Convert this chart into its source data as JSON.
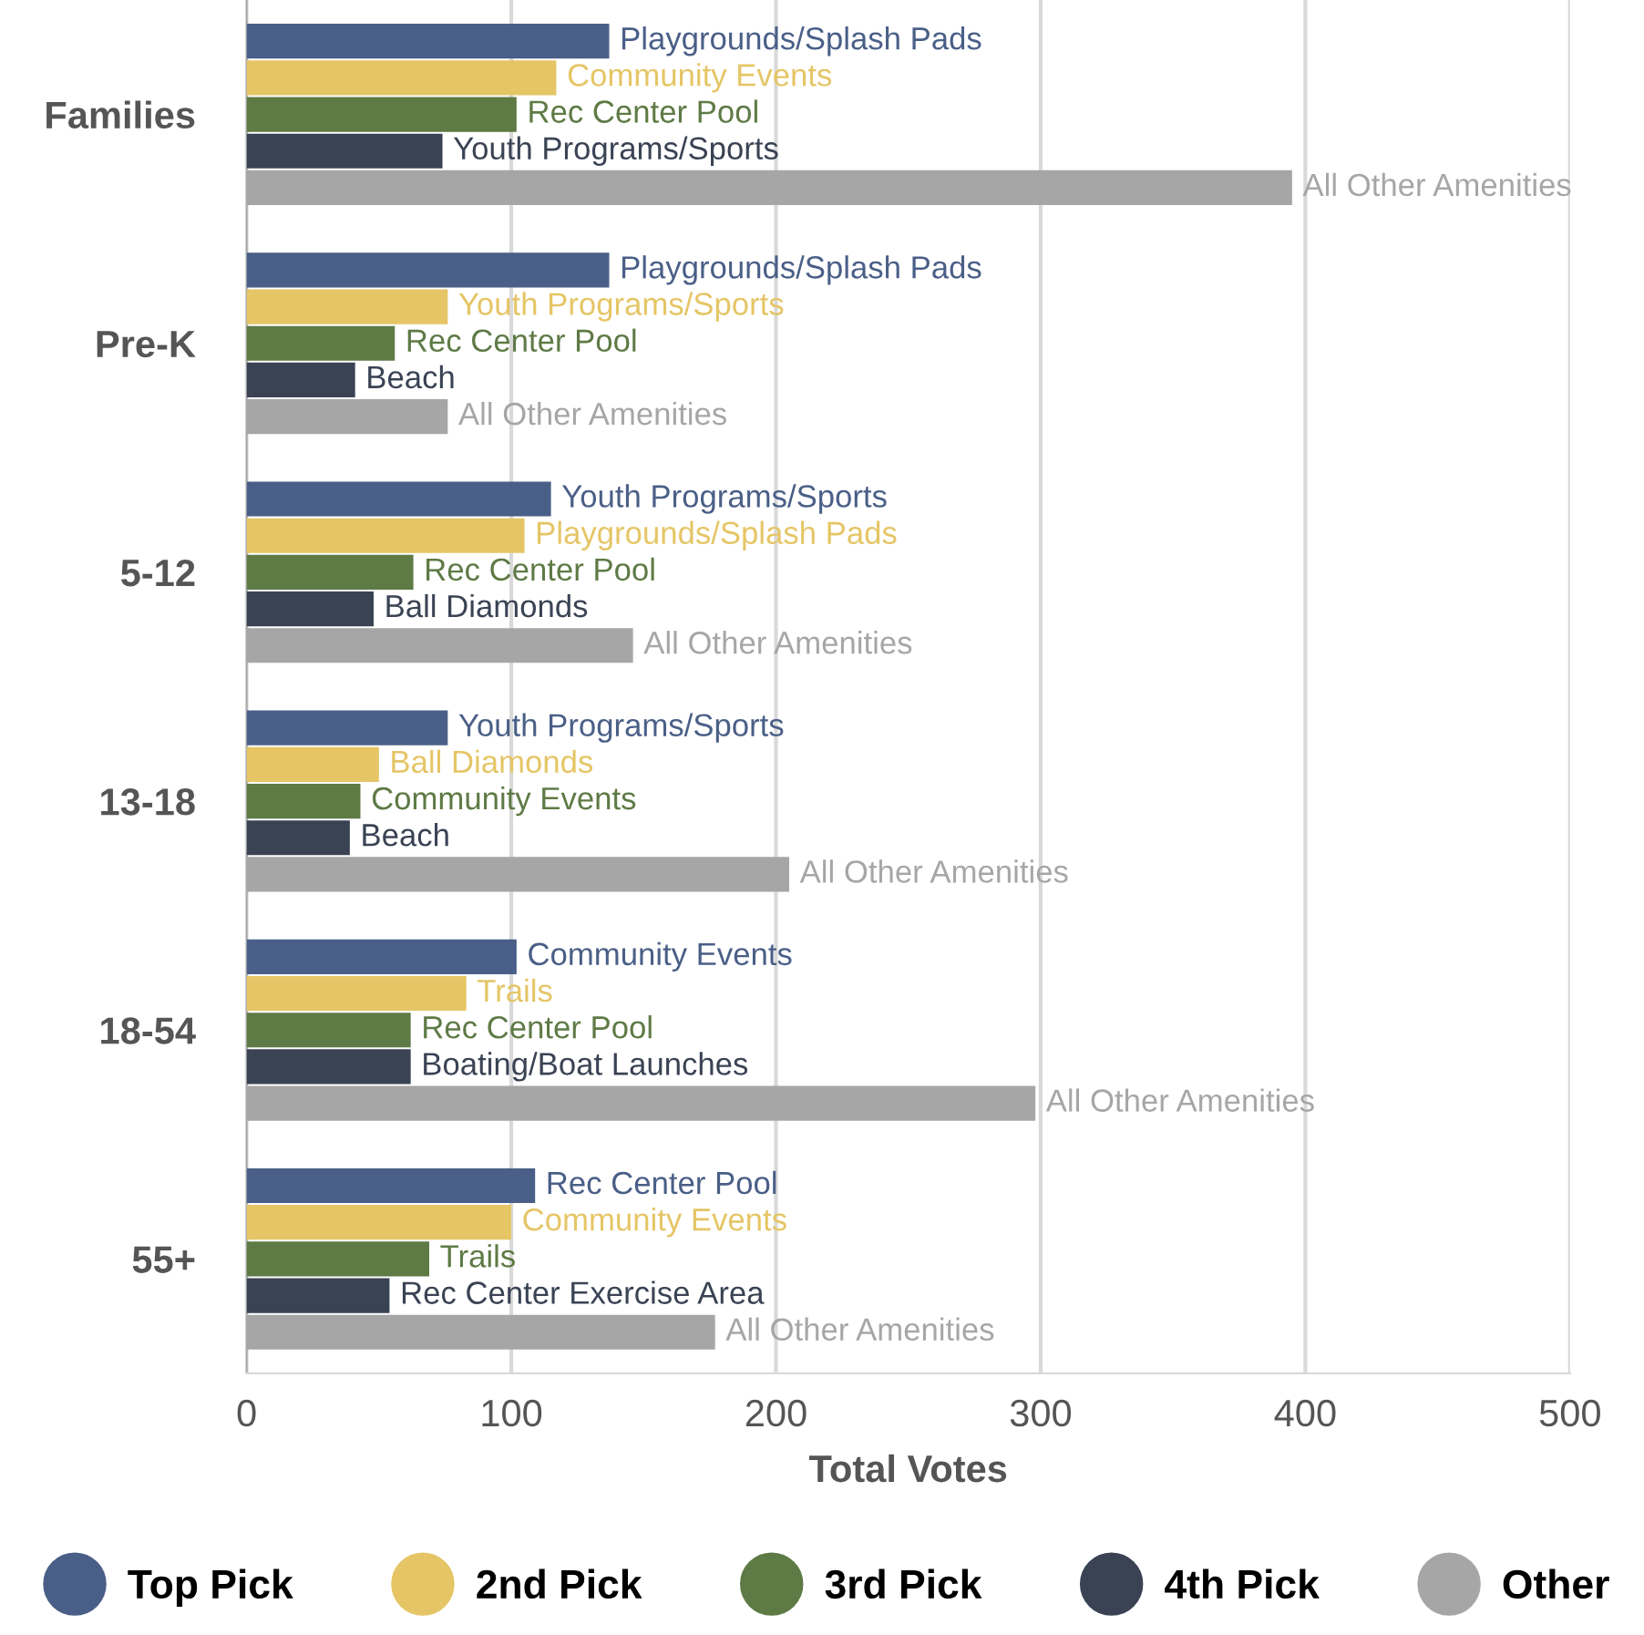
{
  "chart_data": {
    "type": "bar",
    "orientation": "horizontal",
    "xlabel": "Total Votes",
    "categories": [
      "Families",
      "Pre-K",
      "5-12",
      "13-18",
      "18-54",
      "55+"
    ],
    "xlim": [
      0,
      500
    ],
    "xticks": [
      0,
      100,
      200,
      300,
      400,
      500
    ],
    "grid": "x",
    "legend": "bottom",
    "series": [
      {
        "name": "Top Pick",
        "color": "#4a5f87",
        "values": [
          137,
          137,
          115,
          76,
          102,
          109
        ],
        "value_labels": [
          "Playgrounds/Splash Pads",
          "Playgrounds/Splash Pads",
          "Youth Programs/Sports",
          "Youth Programs/Sports",
          "Community Events",
          "Rec Center Pool"
        ]
      },
      {
        "name": "2nd Pick",
        "color": "#e5c565",
        "values": [
          117,
          76,
          105,
          50,
          83,
          100
        ],
        "value_labels": [
          "Community Events",
          "Youth Programs/Sports",
          "Playgrounds/Splash Pads",
          "Ball Diamonds",
          "Trails",
          "Community Events"
        ]
      },
      {
        "name": "3rd Pick",
        "color": "#5e7a45",
        "values": [
          102,
          56,
          63,
          43,
          62,
          69
        ],
        "value_labels": [
          "Rec Center Pool",
          "Rec Center Pool",
          "Rec Center Pool",
          "Community Events",
          "Rec Center Pool",
          "Trails"
        ]
      },
      {
        "name": "4th Pick",
        "color": "#3a4354",
        "values": [
          74,
          41,
          48,
          39,
          62,
          54
        ],
        "value_labels": [
          "Youth Programs/Sports",
          "Beach",
          "Ball Diamonds",
          "Beach",
          "Boating/Boat Launches",
          "Rec Center Exercise Area"
        ]
      },
      {
        "name": "Other",
        "color": "#a6a6a6",
        "values": [
          395,
          76,
          146,
          205,
          298,
          177
        ],
        "value_labels": [
          "All Other Amenities",
          "All Other Amenities",
          "All Other Amenities",
          "All Other Amenities",
          "All Other Amenities",
          "All Other Amenities"
        ]
      }
    ]
  }
}
